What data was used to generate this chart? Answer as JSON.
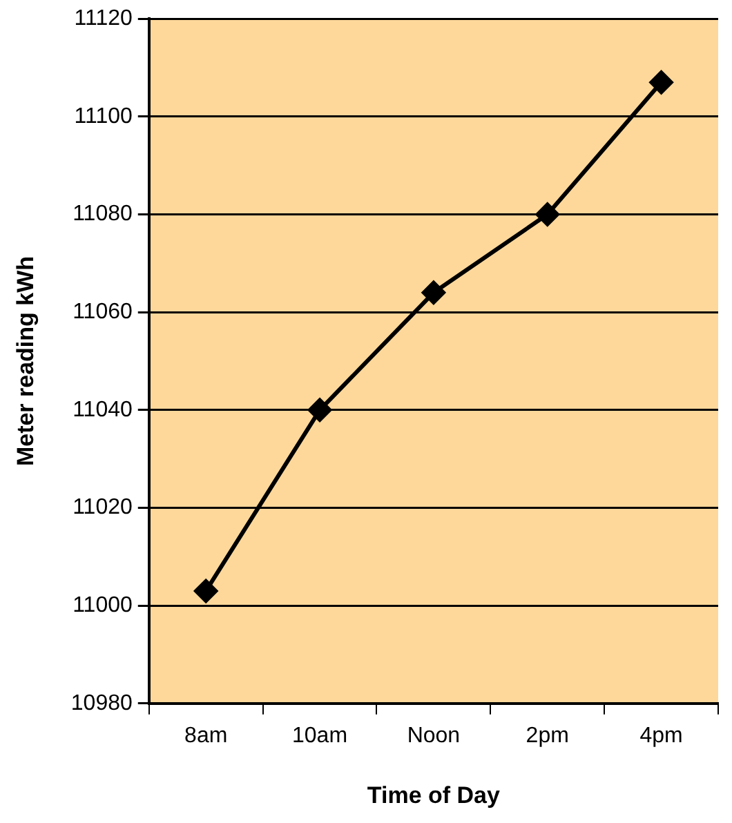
{
  "chart_data": {
    "type": "line",
    "xlabel": "Time of Day",
    "ylabel": "Meter reading kWh",
    "categories": [
      "8am",
      "10am",
      "Noon",
      "2pm",
      "4pm"
    ],
    "series": [
      {
        "color": "#000000",
        "values": [
          11003,
          11040,
          11064,
          11080,
          11107
        ]
      }
    ],
    "ylim": [
      10980,
      11120
    ],
    "yticks": [
      10980,
      11000,
      11020,
      11040,
      11060,
      11080,
      11100,
      11120
    ],
    "grid": "y",
    "legend": false,
    "marker": "diamond",
    "line_style": "solid"
  }
}
